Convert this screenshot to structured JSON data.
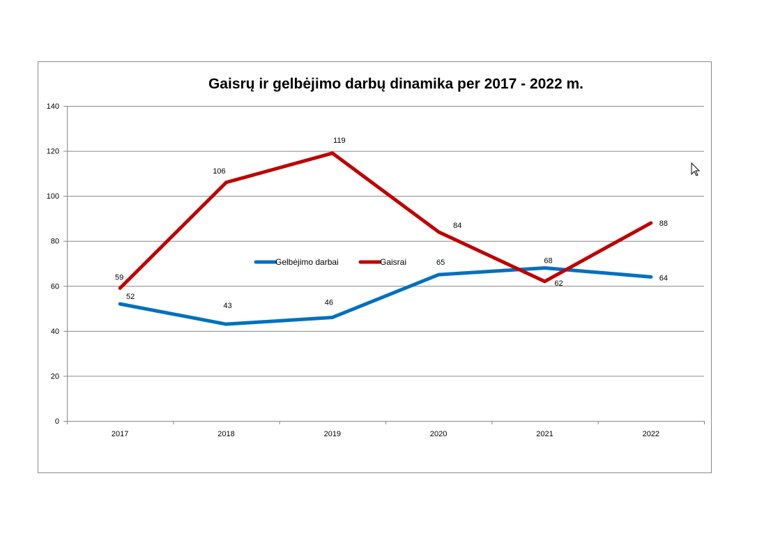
{
  "chart_data": {
    "type": "line",
    "title": "Gaisrų ir gelbėjimo darbų dinamika per 2017 - 2022 m.",
    "xlabel": "",
    "ylabel": "",
    "categories": [
      "2017",
      "2018",
      "2019",
      "2020",
      "2021",
      "2022"
    ],
    "ylim": [
      0,
      140
    ],
    "yticks": [
      "0",
      "20",
      "40",
      "60",
      "80",
      "100",
      "120",
      "140"
    ],
    "grid": true,
    "legend_position": "center",
    "series": [
      {
        "name": "Gelbėjimo darbai",
        "color": "#0070C0",
        "values": [
          52,
          43,
          46,
          65,
          68,
          64
        ]
      },
      {
        "name": "Gaisrai",
        "color": "#C00000",
        "values": [
          59,
          106,
          119,
          84,
          62,
          88
        ]
      }
    ]
  }
}
